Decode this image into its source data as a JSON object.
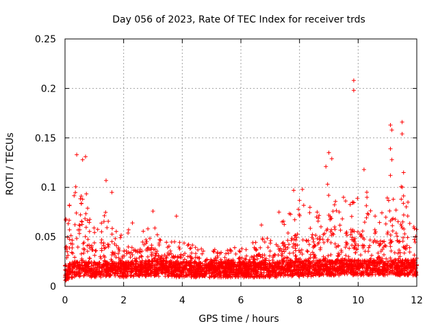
{
  "chart_data": {
    "type": "scatter",
    "title": "Day 056 of 2023, Rate Of TEC Index for receiver trds",
    "xlabel": "GPS time / hours",
    "ylabel": "ROTI / TECUs",
    "xlim": [
      0,
      12
    ],
    "ylim": [
      0,
      0.25
    ],
    "x_ticks": [
      0,
      2,
      4,
      6,
      8,
      10,
      12
    ],
    "x_tick_labels": [
      "0",
      "2",
      "4",
      "6",
      "8",
      "10",
      "12"
    ],
    "y_ticks": [
      0,
      0.05,
      0.1,
      0.15,
      0.2,
      0.25
    ],
    "y_tick_labels": [
      "0",
      "0.05",
      "0.1",
      "0.15",
      "0.2",
      "0.25"
    ],
    "grid": true,
    "marker": "+",
    "series": [
      {
        "name": "ROTI",
        "color": "#ff0000",
        "envelope": {
          "x": [
            0,
            0.05,
            0.1,
            0.2,
            0.3,
            0.4,
            0.5,
            0.6,
            0.7,
            0.8,
            1.0,
            1.2,
            1.4,
            1.6,
            1.8,
            2.0,
            2.2,
            2.4,
            2.6,
            2.8,
            3.0,
            3.2,
            3.5,
            3.8,
            4.0,
            4.5,
            5.0,
            5.5,
            6.0,
            6.5,
            7.0,
            7.2,
            7.5,
            7.8,
            8.0,
            8.2,
            8.5,
            8.8,
            9.0,
            9.2,
            9.5,
            9.8,
            10.0,
            10.2,
            10.5,
            10.8,
            11.0,
            11.2,
            11.4,
            11.6,
            11.8,
            12.0
          ],
          "base": [
            0.012,
            0.012,
            0.013,
            0.014,
            0.015,
            0.016,
            0.016,
            0.016,
            0.016,
            0.015,
            0.015,
            0.015,
            0.016,
            0.016,
            0.015,
            0.015,
            0.016,
            0.016,
            0.016,
            0.016,
            0.016,
            0.016,
            0.016,
            0.015,
            0.015,
            0.015,
            0.015,
            0.015,
            0.015,
            0.015,
            0.015,
            0.015,
            0.016,
            0.016,
            0.016,
            0.016,
            0.016,
            0.017,
            0.017,
            0.017,
            0.017,
            0.017,
            0.017,
            0.017,
            0.017,
            0.017,
            0.017,
            0.017,
            0.017,
            0.017,
            0.017,
            0.017
          ],
          "upper": [
            0.06,
            0.075,
            0.085,
            0.09,
            0.1,
            0.12,
            0.12,
            0.125,
            0.11,
            0.07,
            0.065,
            0.07,
            0.1,
            0.085,
            0.06,
            0.055,
            0.065,
            0.06,
            0.055,
            0.058,
            0.065,
            0.05,
            0.05,
            0.045,
            0.048,
            0.04,
            0.038,
            0.038,
            0.04,
            0.045,
            0.055,
            0.065,
            0.07,
            0.08,
            0.09,
            0.09,
            0.075,
            0.08,
            0.12,
            0.1,
            0.085,
            0.095,
            0.09,
            0.11,
            0.07,
            0.075,
            0.09,
            0.13,
            0.12,
            0.085,
            0.075,
            0.065
          ]
        },
        "outliers": [
          {
            "x": 0.4,
            "y": 0.133
          },
          {
            "x": 0.6,
            "y": 0.128
          },
          {
            "x": 0.7,
            "y": 0.131
          },
          {
            "x": 0.15,
            "y": 0.082
          },
          {
            "x": 1.4,
            "y": 0.107
          },
          {
            "x": 1.6,
            "y": 0.095
          },
          {
            "x": 2.3,
            "y": 0.064
          },
          {
            "x": 3.0,
            "y": 0.076
          },
          {
            "x": 3.8,
            "y": 0.071
          },
          {
            "x": 6.7,
            "y": 0.062
          },
          {
            "x": 7.3,
            "y": 0.075
          },
          {
            "x": 7.8,
            "y": 0.097
          },
          {
            "x": 8.1,
            "y": 0.098
          },
          {
            "x": 8.6,
            "y": 0.075
          },
          {
            "x": 8.9,
            "y": 0.121
          },
          {
            "x": 9.0,
            "y": 0.135
          },
          {
            "x": 9.1,
            "y": 0.129
          },
          {
            "x": 9.5,
            "y": 0.09
          },
          {
            "x": 9.85,
            "y": 0.208
          },
          {
            "x": 9.85,
            "y": 0.198
          },
          {
            "x": 10.2,
            "y": 0.118
          },
          {
            "x": 10.3,
            "y": 0.09
          },
          {
            "x": 11.1,
            "y": 0.163
          },
          {
            "x": 11.15,
            "y": 0.158
          },
          {
            "x": 11.1,
            "y": 0.139
          },
          {
            "x": 11.15,
            "y": 0.128
          },
          {
            "x": 11.1,
            "y": 0.112
          },
          {
            "x": 11.2,
            "y": 0.088
          },
          {
            "x": 11.5,
            "y": 0.166
          },
          {
            "x": 11.5,
            "y": 0.154
          },
          {
            "x": 11.55,
            "y": 0.115
          },
          {
            "x": 11.7,
            "y": 0.085
          },
          {
            "x": 11.9,
            "y": 0.06
          }
        ]
      }
    ]
  }
}
